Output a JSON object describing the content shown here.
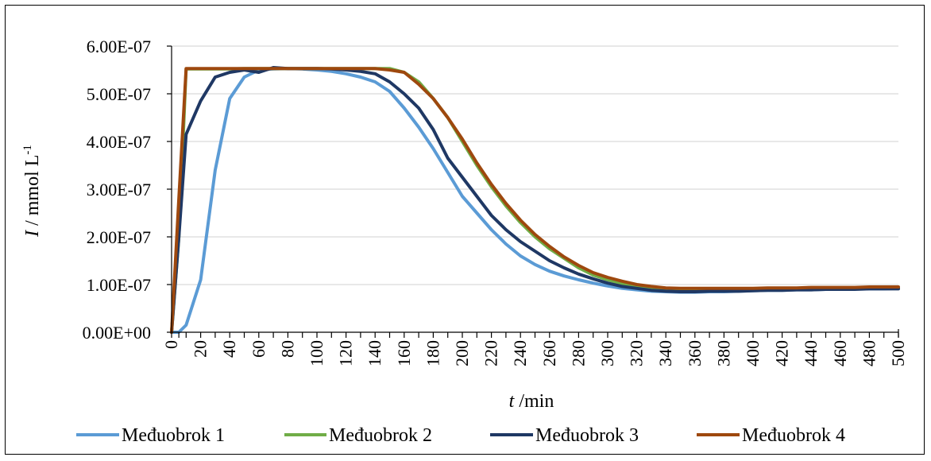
{
  "chart_data": {
    "type": "line",
    "title": "",
    "xlabel_italic": "t",
    "xlabel_rest": " /min",
    "ylabel_italic": "I",
    "ylabel_rest": " / mmol L",
    "ylabel_sup": "-1",
    "xlim": [
      0,
      500
    ],
    "ylim": [
      0,
      6e-07
    ],
    "x_ticks": [
      0,
      20,
      40,
      60,
      80,
      100,
      120,
      140,
      160,
      180,
      200,
      220,
      240,
      260,
      280,
      300,
      320,
      340,
      360,
      380,
      400,
      420,
      440,
      460,
      480,
      500
    ],
    "y_ticks": [
      0,
      1e-07,
      2e-07,
      3e-07,
      4e-07,
      5e-07,
      6e-07
    ],
    "y_tick_labels": [
      "0.00E+00",
      "1.00E-07",
      "2.00E-07",
      "3.00E-07",
      "4.00E-07",
      "5.00E-07",
      "6.00E-07"
    ],
    "grid": "horizontal",
    "legend_position": "bottom",
    "x": [
      0,
      5,
      10,
      20,
      30,
      40,
      50,
      60,
      70,
      80,
      90,
      100,
      110,
      120,
      130,
      140,
      150,
      160,
      170,
      180,
      190,
      200,
      210,
      220,
      230,
      240,
      250,
      260,
      270,
      280,
      290,
      300,
      310,
      320,
      330,
      340,
      350,
      360,
      370,
      380,
      390,
      400,
      410,
      420,
      430,
      440,
      450,
      460,
      470,
      480,
      490,
      500
    ],
    "series": [
      {
        "name": "Međuobrok 1",
        "color": "#5b9bd5",
        "values": [
          0,
          0,
          1.5e-08,
          1.1e-07,
          3.4e-07,
          4.9e-07,
          5.35e-07,
          5.5e-07,
          5.52e-07,
          5.53e-07,
          5.52e-07,
          5.5e-07,
          5.47e-07,
          5.42e-07,
          5.35e-07,
          5.25e-07,
          5.05e-07,
          4.7e-07,
          4.3e-07,
          3.85e-07,
          3.35e-07,
          2.85e-07,
          2.5e-07,
          2.15e-07,
          1.85e-07,
          1.6e-07,
          1.42e-07,
          1.28e-07,
          1.18e-07,
          1.1e-07,
          1.03e-07,
          9.7e-08,
          9.2e-08,
          8.9e-08,
          8.6e-08,
          8.5e-08,
          8.4e-08,
          8.4e-08,
          8.5e-08,
          8.5e-08,
          8.6e-08,
          8.7e-08,
          8.8e-08,
          8.8e-08,
          8.9e-08,
          8.9e-08,
          9e-08,
          9e-08,
          9.1e-08,
          9.1e-08,
          9.1e-08,
          9.2e-08
        ]
      },
      {
        "name": "Međuobrok 2",
        "color": "#70ad47",
        "values": [
          0,
          2e-07,
          5.52e-07,
          5.52e-07,
          5.52e-07,
          5.52e-07,
          5.53e-07,
          5.53e-07,
          5.53e-07,
          5.53e-07,
          5.53e-07,
          5.53e-07,
          5.53e-07,
          5.53e-07,
          5.53e-07,
          5.53e-07,
          5.53e-07,
          5.45e-07,
          5.25e-07,
          4.9e-07,
          4.5e-07,
          4e-07,
          3.5e-07,
          3.05e-07,
          2.65e-07,
          2.3e-07,
          2e-07,
          1.75e-07,
          1.55e-07,
          1.35e-07,
          1.2e-07,
          1.1e-07,
          1.02e-07,
          9.6e-08,
          9.2e-08,
          9e-08,
          9e-08,
          9e-08,
          9e-08,
          9e-08,
          9e-08,
          9e-08,
          9e-08,
          9e-08,
          9e-08,
          9.1e-08,
          9.1e-08,
          9.1e-08,
          9.2e-08,
          9.2e-08,
          9.2e-08,
          9.3e-08
        ]
      },
      {
        "name": "Međuobrok 3",
        "color": "#1f3864",
        "values": [
          0,
          2e-07,
          4.15e-07,
          4.85e-07,
          5.35e-07,
          5.45e-07,
          5.5e-07,
          5.45e-07,
          5.55e-07,
          5.53e-07,
          5.53e-07,
          5.53e-07,
          5.52e-07,
          5.5e-07,
          5.47e-07,
          5.42e-07,
          5.25e-07,
          5e-07,
          4.7e-07,
          4.25e-07,
          3.65e-07,
          3.25e-07,
          2.85e-07,
          2.45e-07,
          2.15e-07,
          1.9e-07,
          1.7e-07,
          1.5e-07,
          1.35e-07,
          1.22e-07,
          1.12e-07,
          1.03e-07,
          9.6e-08,
          9.2e-08,
          8.8e-08,
          8.6e-08,
          8.5e-08,
          8.5e-08,
          8.6e-08,
          8.6e-08,
          8.6e-08,
          8.7e-08,
          8.8e-08,
          8.8e-08,
          8.9e-08,
          8.9e-08,
          9e-08,
          9e-08,
          9e-08,
          9.1e-08,
          9.1e-08,
          9.1e-08
        ]
      },
      {
        "name": "Međuobrok 4",
        "color": "#9e480e",
        "values": [
          0,
          2.8e-07,
          5.53e-07,
          5.53e-07,
          5.53e-07,
          5.53e-07,
          5.53e-07,
          5.53e-07,
          5.53e-07,
          5.53e-07,
          5.53e-07,
          5.53e-07,
          5.53e-07,
          5.53e-07,
          5.53e-07,
          5.53e-07,
          5.5e-07,
          5.45e-07,
          5.2e-07,
          4.9e-07,
          4.5e-07,
          4.05e-07,
          3.55e-07,
          3.1e-07,
          2.7e-07,
          2.35e-07,
          2.05e-07,
          1.8e-07,
          1.58e-07,
          1.4e-07,
          1.25e-07,
          1.15e-07,
          1.07e-07,
          1e-07,
          9.6e-08,
          9.3e-08,
          9.2e-08,
          9.2e-08,
          9.2e-08,
          9.2e-08,
          9.2e-08,
          9.2e-08,
          9.3e-08,
          9.3e-08,
          9.3e-08,
          9.4e-08,
          9.4e-08,
          9.4e-08,
          9.4e-08,
          9.5e-08,
          9.5e-08,
          9.5e-08
        ]
      }
    ]
  }
}
